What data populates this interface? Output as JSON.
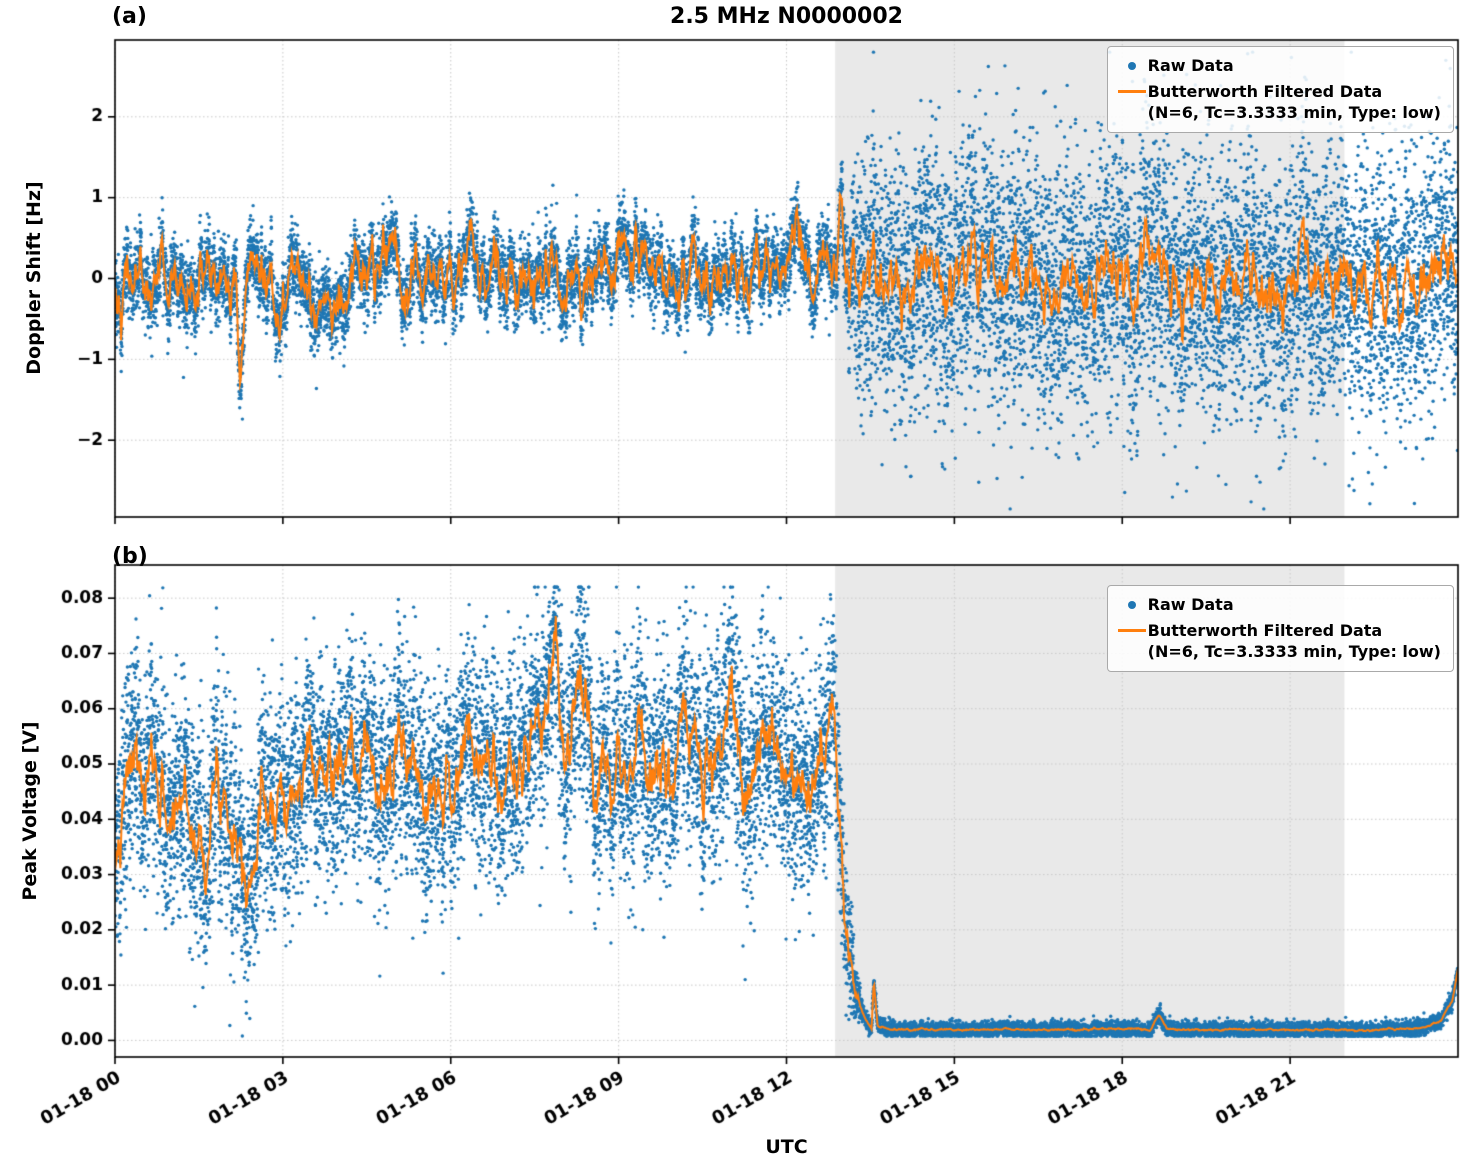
{
  "figure": {
    "title": "2.5 MHz N0000002",
    "xlabel": "UTC",
    "panel_a_label": "(a)",
    "panel_b_label": "(b)",
    "legend": {
      "raw": "Raw Data",
      "filtered_line1": "Butterworth Filtered Data",
      "filtered_line2": "(N=6, Tc=3.3333 min, Type: low)"
    },
    "colors": {
      "raw": "#1f77b4",
      "filtered": "#ff7f0e",
      "shade": "#e9e9e9",
      "grid": "#c9c9c9",
      "axes": "#000000"
    }
  },
  "chart_data": [
    {
      "type": "scatter",
      "panel": "a",
      "title": "2.5 MHz N0000002",
      "xlabel": "UTC",
      "ylabel": "Doppler Shift [Hz]",
      "xlim_hours": [
        0,
        24
      ],
      "x_start_label": "01-18 00",
      "ylim": [
        -2.95,
        2.95
      ],
      "yticks": [
        {
          "v": 2,
          "label": "2"
        },
        {
          "v": 1,
          "label": "1"
        },
        {
          "v": 0,
          "label": "0"
        },
        {
          "v": -1,
          "label": "−1"
        },
        {
          "v": -2,
          "label": "−2"
        }
      ],
      "xticks": [
        {
          "h": 0,
          "label": "01-18 00"
        },
        {
          "h": 3,
          "label": "01-18 03"
        },
        {
          "h": 6,
          "label": "01-18 06"
        },
        {
          "h": 9,
          "label": "01-18 09"
        },
        {
          "h": 12,
          "label": "01-18 12"
        },
        {
          "h": 15,
          "label": "01-18 15"
        },
        {
          "h": 18,
          "label": "01-18 18"
        },
        {
          "h": 21,
          "label": "01-18 21"
        }
      ],
      "show_x_labels": false,
      "grid": true,
      "shade_hours": [
        12.87,
        21.97
      ],
      "series": [
        {
          "name": "Raw Data",
          "type": "scatter",
          "color": "#1f77b4"
        },
        {
          "name": "Butterworth Filtered Data",
          "detail": "N=6, Tc=3.3333 min, Type: low",
          "type": "line",
          "color": "#ff7f0e"
        }
      ],
      "generation": {
        "seed": 42,
        "n_scatter": 16000,
        "night_start": 12.9,
        "night_ramp": 0.45,
        "base_points": [
          [
            0,
            0
          ],
          [
            24,
            0
          ]
        ],
        "bumps": [
          [
            1.3,
            -0.35,
            0.1
          ],
          [
            2.05,
            -0.45,
            0.12
          ],
          [
            2.25,
            -1.05,
            0.07
          ],
          [
            3.55,
            -0.5,
            0.09
          ],
          [
            4.35,
            0.45,
            0.06
          ],
          [
            5.0,
            0.55,
            0.05
          ],
          [
            6.35,
            0.45,
            0.07
          ],
          [
            7.3,
            0.35,
            0.08
          ],
          [
            7.95,
            -0.75,
            0.09
          ],
          [
            8.35,
            -0.55,
            0.07
          ],
          [
            9.3,
            0.45,
            0.06
          ],
          [
            10.15,
            0.5,
            0.05
          ],
          [
            11.4,
            0.4,
            0.07
          ],
          [
            12.2,
            0.35,
            0.2
          ],
          [
            12.7,
            0.45,
            0.12
          ],
          [
            12.97,
            0.95,
            0.06
          ]
        ],
        "ar": {
          "rho": 0.86,
          "day_sigma": 0.12,
          "night_sigma": 0.14
        },
        "scatter": {
          "day_sigma": 0.21,
          "night_sigma": 0.78,
          "outlier_frac": 0.025,
          "outlier_mult": 1.7
        },
        "clip": [
          -2.85,
          2.8
        ]
      }
    },
    {
      "type": "scatter",
      "panel": "b",
      "xlabel": "UTC",
      "ylabel": "Peak Voltage [V]",
      "xlim_hours": [
        0,
        24
      ],
      "ylim": [
        -0.003,
        0.086
      ],
      "yticks": [
        {
          "v": 0.08,
          "label": "0.08"
        },
        {
          "v": 0.07,
          "label": "0.07"
        },
        {
          "v": 0.06,
          "label": "0.06"
        },
        {
          "v": 0.05,
          "label": "0.05"
        },
        {
          "v": 0.04,
          "label": "0.04"
        },
        {
          "v": 0.03,
          "label": "0.03"
        },
        {
          "v": 0.02,
          "label": "0.02"
        },
        {
          "v": 0.01,
          "label": "0.01"
        },
        {
          "v": 0.0,
          "label": "0.00"
        }
      ],
      "xticks": [
        {
          "h": 0,
          "label": "01-18 00"
        },
        {
          "h": 3,
          "label": "01-18 03"
        },
        {
          "h": 6,
          "label": "01-18 06"
        },
        {
          "h": 9,
          "label": "01-18 09"
        },
        {
          "h": 12,
          "label": "01-18 12"
        },
        {
          "h": 15,
          "label": "01-18 15"
        },
        {
          "h": 18,
          "label": "01-18 18"
        },
        {
          "h": 21,
          "label": "01-18 21"
        }
      ],
      "show_x_labels": true,
      "grid": true,
      "shade_hours": [
        12.87,
        21.97
      ],
      "series": [
        {
          "name": "Raw Data",
          "type": "scatter",
          "color": "#1f77b4"
        },
        {
          "name": "Butterworth Filtered Data",
          "detail": "N=6, Tc=3.3333 min, Type: low",
          "type": "line",
          "color": "#ff7f0e"
        }
      ],
      "generation": {
        "seed": 7,
        "n_scatter": 16000,
        "night_start": 12.85,
        "night_ramp": 0.55,
        "base_points": [
          [
            0,
            0.028
          ],
          [
            0.15,
            0.04
          ],
          [
            0.35,
            0.05
          ],
          [
            0.55,
            0.041
          ],
          [
            0.75,
            0.047
          ],
          [
            1.0,
            0.04
          ],
          [
            1.25,
            0.046
          ],
          [
            1.5,
            0.036
          ],
          [
            1.75,
            0.044
          ],
          [
            2.0,
            0.047
          ],
          [
            2.25,
            0.038
          ],
          [
            2.5,
            0.036
          ],
          [
            2.75,
            0.046
          ],
          [
            3.0,
            0.051
          ],
          [
            3.25,
            0.043
          ],
          [
            3.5,
            0.053
          ],
          [
            3.75,
            0.046
          ],
          [
            4.0,
            0.051
          ],
          [
            4.25,
            0.042
          ],
          [
            4.5,
            0.051
          ],
          [
            4.75,
            0.045
          ],
          [
            5.0,
            0.049
          ],
          [
            5.25,
            0.053
          ],
          [
            5.5,
            0.047
          ],
          [
            5.75,
            0.051
          ],
          [
            6.0,
            0.047
          ],
          [
            6.25,
            0.052
          ],
          [
            6.5,
            0.048
          ],
          [
            6.75,
            0.051
          ],
          [
            7.0,
            0.045
          ],
          [
            7.25,
            0.051
          ],
          [
            7.5,
            0.054
          ],
          [
            7.7,
            0.058
          ],
          [
            7.85,
            0.071
          ],
          [
            8.0,
            0.053
          ],
          [
            8.25,
            0.056
          ],
          [
            8.5,
            0.059
          ],
          [
            8.75,
            0.054
          ],
          [
            9.0,
            0.05
          ],
          [
            9.25,
            0.054
          ],
          [
            9.5,
            0.048
          ],
          [
            9.75,
            0.052
          ],
          [
            10.0,
            0.047
          ],
          [
            10.25,
            0.051
          ],
          [
            10.5,
            0.045
          ],
          [
            10.75,
            0.05
          ],
          [
            11.0,
            0.053
          ],
          [
            11.25,
            0.047
          ],
          [
            11.5,
            0.051
          ],
          [
            11.75,
            0.054
          ],
          [
            12.0,
            0.049
          ],
          [
            12.25,
            0.052
          ],
          [
            12.5,
            0.056
          ],
          [
            12.7,
            0.059
          ],
          [
            12.85,
            0.05
          ],
          [
            13.0,
            0.028
          ],
          [
            13.1,
            0.014
          ],
          [
            13.25,
            0.006
          ],
          [
            13.4,
            0.0035
          ],
          [
            13.52,
            0.002
          ],
          [
            13.56,
            0.011
          ],
          [
            13.63,
            0.0025
          ],
          [
            14.0,
            0.002
          ],
          [
            15.0,
            0.002
          ],
          [
            16.0,
            0.002
          ],
          [
            17.0,
            0.002
          ],
          [
            18.0,
            0.002
          ],
          [
            18.5,
            0.002
          ],
          [
            18.65,
            0.0045
          ],
          [
            18.8,
            0.002
          ],
          [
            20.0,
            0.002
          ],
          [
            21.0,
            0.002
          ],
          [
            22.0,
            0.002
          ],
          [
            23.0,
            0.002
          ],
          [
            23.4,
            0.0025
          ],
          [
            23.7,
            0.0035
          ],
          [
            23.9,
            0.007
          ],
          [
            24,
            0.013
          ]
        ],
        "bumps": [],
        "ar": {
          "rho": 0.88,
          "day_sigma": 0.0022,
          "night_sigma": 6e-05
        },
        "scatter": {
          "day_sigma": 0.0095,
          "night_sigma": 0.0007,
          "outlier_frac": 0.02,
          "outlier_mult": 1.5
        },
        "clip": [
          0.0008,
          0.082
        ]
      }
    }
  ]
}
